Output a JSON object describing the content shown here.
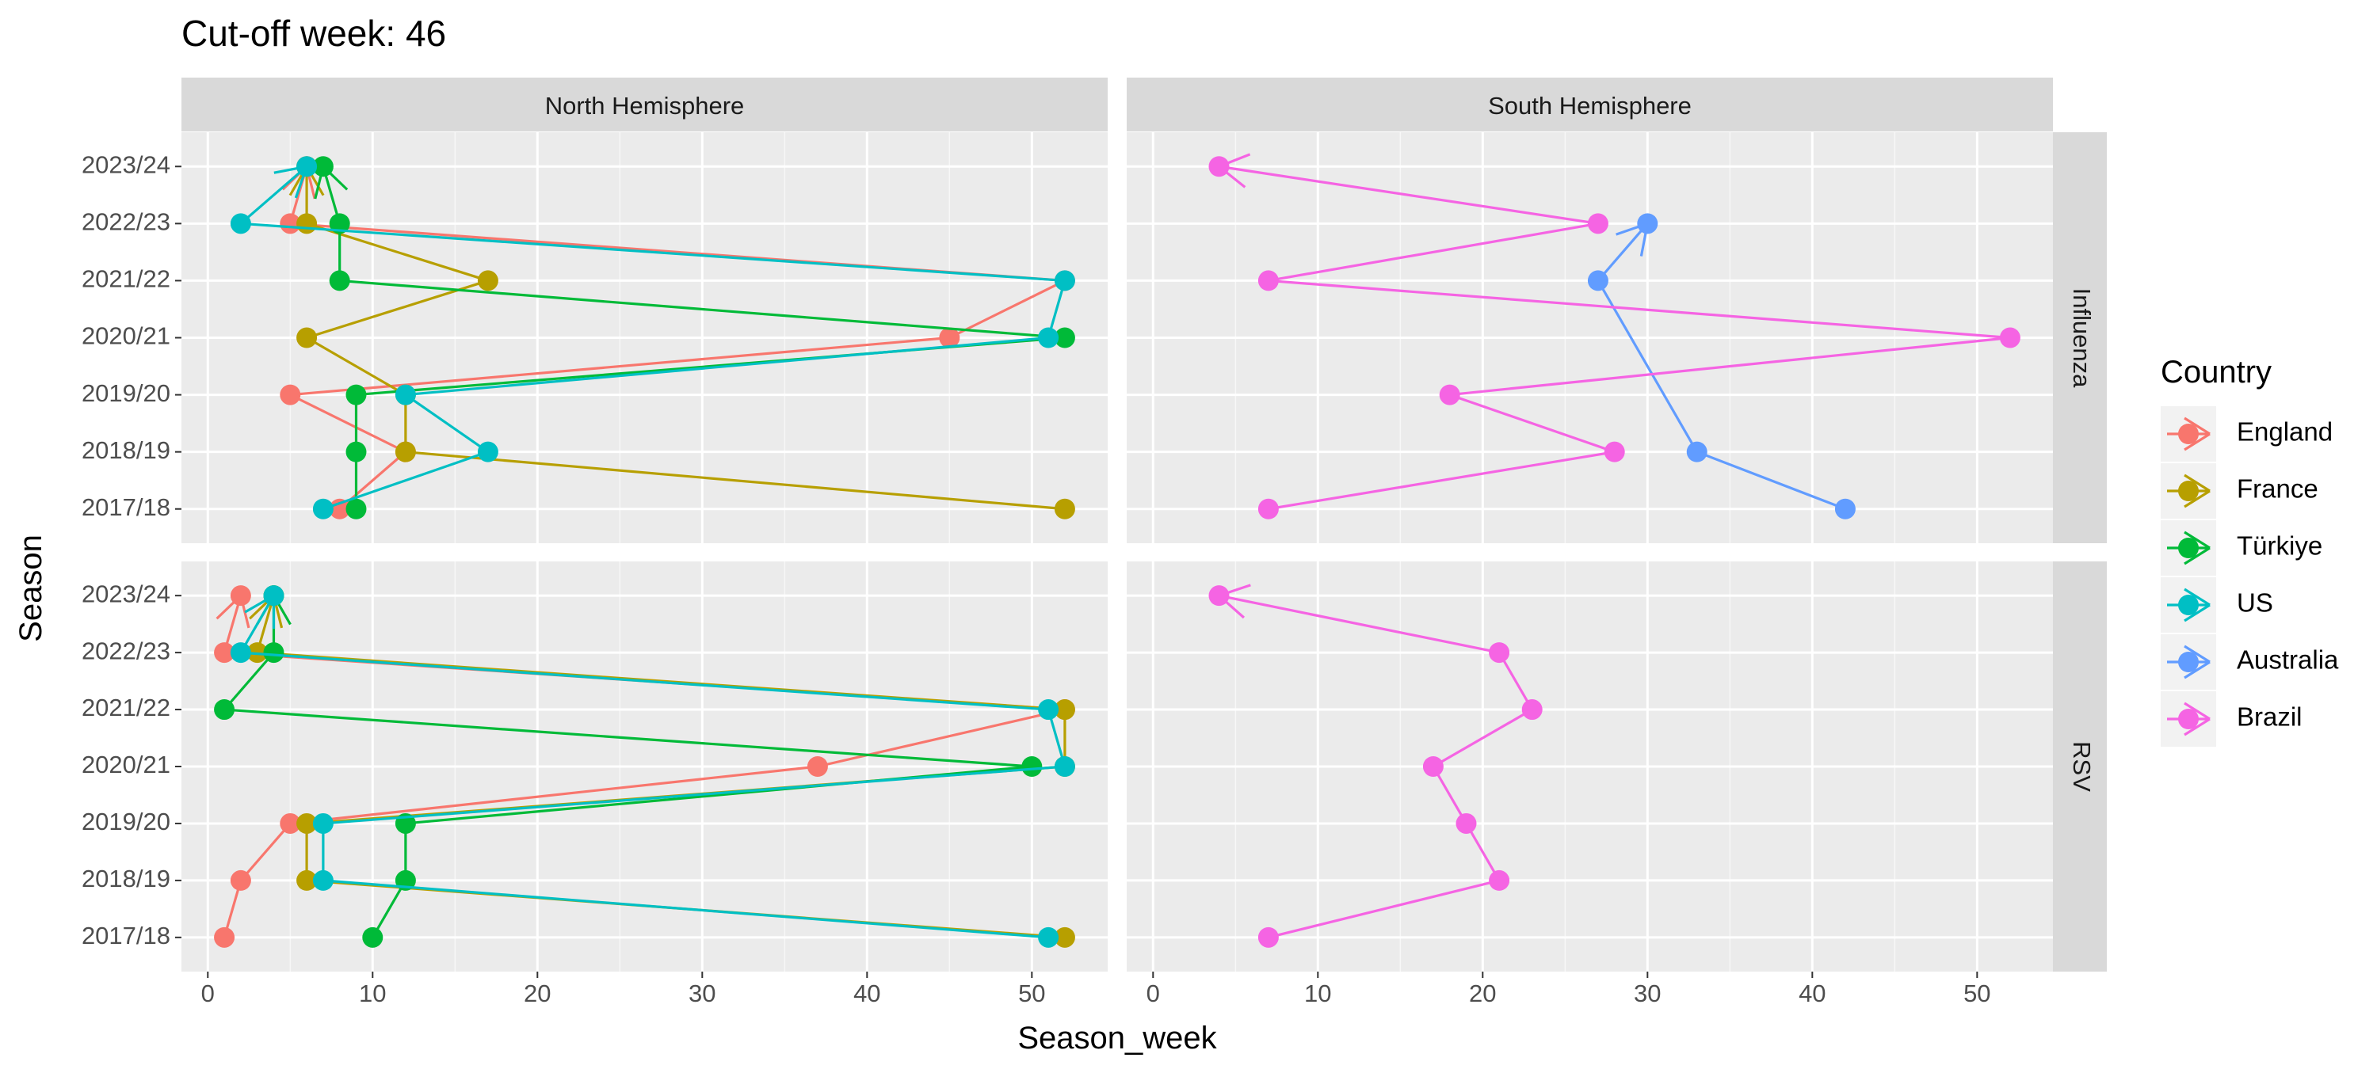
{
  "chart_data": {
    "type": "line",
    "title": "Cut-off week: 46",
    "xlabel": "Season_week",
    "ylabel": "Season",
    "xlim": [
      -1.6,
      54.6
    ],
    "x_ticks": [
      0,
      10,
      20,
      30,
      40,
      50
    ],
    "seasons": [
      "2017/18",
      "2018/19",
      "2019/20",
      "2020/21",
      "2021/22",
      "2022/23",
      "2023/24"
    ],
    "columns": [
      "North Hemisphere",
      "South Hemisphere"
    ],
    "rows": [
      "Influenza",
      "RSV"
    ],
    "grid": true,
    "line_style": "path connecting seasons in order with an arrow at the 2023/24 end",
    "legend": {
      "title": "Country",
      "position": "right",
      "entries": [
        {
          "name": "England",
          "color": "#F8766D"
        },
        {
          "name": "France",
          "color": "#B79F00"
        },
        {
          "name": "Türkiye",
          "color": "#00BA38"
        },
        {
          "name": "US",
          "color": "#00BFC4"
        },
        {
          "name": "Australia",
          "color": "#619CFF"
        },
        {
          "name": "Brazil",
          "color": "#F564E3"
        }
      ]
    },
    "panels": [
      {
        "hemisphere": "North Hemisphere",
        "virus": "Influenza",
        "series": [
          {
            "country": "England",
            "values": [
              8,
              12,
              5,
              45,
              52,
              5,
              6
            ]
          },
          {
            "country": "France",
            "values": [
              52,
              12,
              12,
              6,
              17,
              6,
              6
            ]
          },
          {
            "country": "Türkiye",
            "values": [
              9,
              9,
              9,
              52,
              8,
              8,
              7
            ]
          },
          {
            "country": "US",
            "values": [
              7,
              17,
              12,
              51,
              52,
              2,
              6
            ]
          }
        ]
      },
      {
        "hemisphere": "South Hemisphere",
        "virus": "Influenza",
        "series": [
          {
            "country": "Australia",
            "values": [
              42,
              33,
              null,
              null,
              27,
              30,
              null
            ]
          },
          {
            "country": "Brazil",
            "values": [
              7,
              28,
              18,
              52,
              7,
              27,
              4
            ]
          }
        ]
      },
      {
        "hemisphere": "North Hemisphere",
        "virus": "RSV",
        "series": [
          {
            "country": "England",
            "values": [
              1,
              2,
              5,
              37,
              52,
              1,
              2
            ]
          },
          {
            "country": "France",
            "values": [
              52,
              6,
              6,
              52,
              52,
              3,
              4
            ]
          },
          {
            "country": "Türkiye",
            "values": [
              10,
              12,
              12,
              50,
              1,
              4,
              4
            ]
          },
          {
            "country": "US",
            "values": [
              51,
              7,
              7,
              52,
              51,
              2,
              4
            ]
          }
        ]
      },
      {
        "hemisphere": "South Hemisphere",
        "virus": "RSV",
        "series": [
          {
            "country": "Brazil",
            "values": [
              7,
              21,
              19,
              17,
              23,
              21,
              4
            ]
          }
        ]
      }
    ]
  }
}
